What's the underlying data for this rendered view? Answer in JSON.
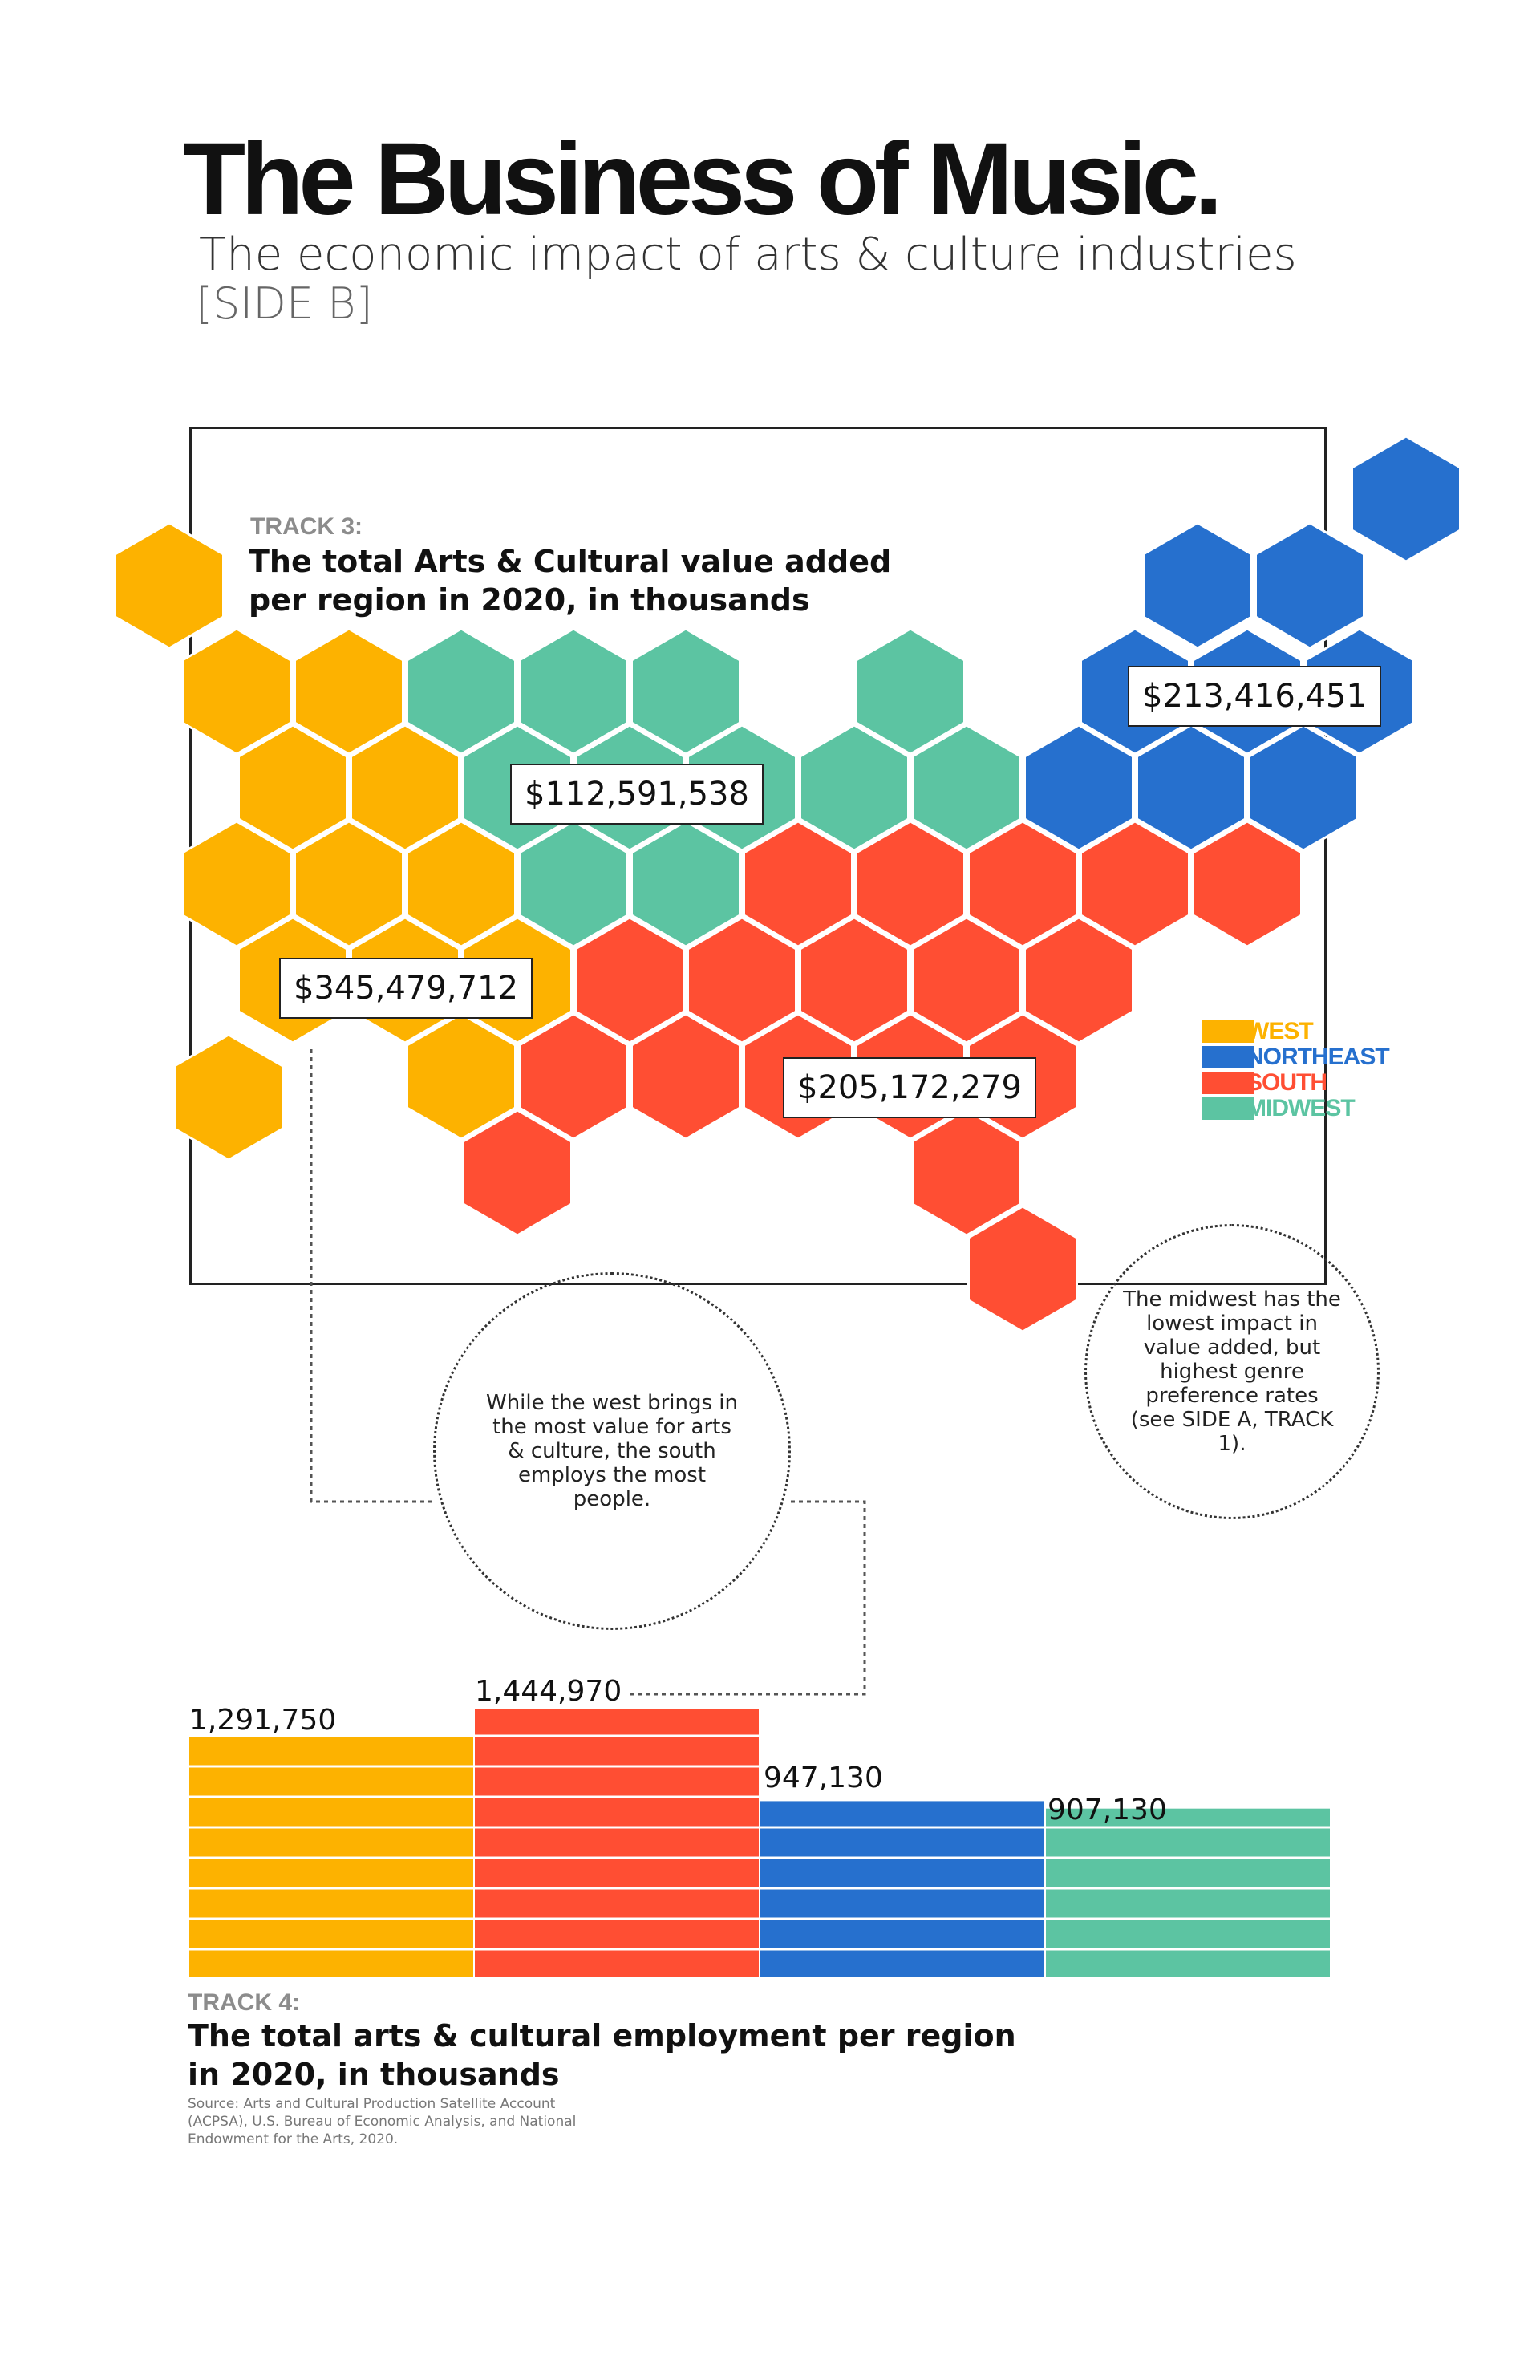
{
  "header": {
    "title": "The Business of Music.",
    "subtitle": "The economic impact of arts & culture industries",
    "side": "[SIDE B]"
  },
  "track3": {
    "number": "TRACK 3:",
    "title_line1": "The total Arts & Cultural value added",
    "title_line2": "per region in 2020, in thousands"
  },
  "track4": {
    "number": "TRACK 4:",
    "title_line1": "The total arts & cultural employment per region",
    "title_line2": "in 2020, in thousands"
  },
  "legend": [
    {
      "label": "WEST",
      "color": "#FDB200"
    },
    {
      "label": "NORTHEAST",
      "color": "#2670CE"
    },
    {
      "label": "SOUTH",
      "color": "#FF4E33"
    },
    {
      "label": "MIDWEST",
      "color": "#5CC4A2"
    }
  ],
  "notes": {
    "west_south": "While the west brings in the most value for arts & culture, the south employs the most people.",
    "midwest": "The midwest has the lowest impact in value added, but highest genre preference rates (see SIDE A, TRACK 1)."
  },
  "source": "Source: Arts and Cultural Production Satellite Account (ACPSA), U.S. Bureau of Economic Analysis, and National Endowment for the Arts, 2020.",
  "chart_data": [
    {
      "type": "hex-map",
      "title": "The total Arts & Cultural value added per region in 2020, in thousands",
      "regions": [
        {
          "name": "WEST",
          "value": 345479712,
          "label": "$345,479,712",
          "color": "#FDB200"
        },
        {
          "name": "MIDWEST",
          "value": 112591538,
          "label": "$112,591,538",
          "color": "#5CC4A2"
        },
        {
          "name": "NORTHEAST",
          "value": 213416451,
          "label": "$213,416,451",
          "color": "#2670CE"
        },
        {
          "name": "SOUTH",
          "value": 205172279,
          "label": "$205,172,279",
          "color": "#FF4E33"
        }
      ]
    },
    {
      "type": "bar",
      "title": "The total arts & cultural employment per region in 2020, in thousands",
      "categories": [
        "WEST",
        "SOUTH",
        "NORTHEAST",
        "MIDWEST"
      ],
      "values": [
        1291750,
        1444970,
        947130,
        907130
      ],
      "labels": [
        "1,291,750",
        "1,444,970",
        "947,130",
        "907,130"
      ],
      "colors": [
        "#FDB200",
        "#FF4E33",
        "#2670CE",
        "#5CC4A2"
      ]
    }
  ]
}
